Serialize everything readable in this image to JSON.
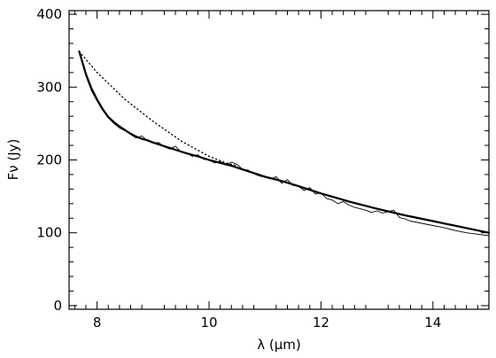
{
  "chart_data": {
    "type": "line",
    "title": "",
    "xlabel": "λ (μm)",
    "ylabel": "Fν (Jy)",
    "xlim": [
      7.5,
      15
    ],
    "ylim": [
      -5,
      405
    ],
    "xticks": [
      8,
      10,
      12,
      14
    ],
    "yticks": [
      0,
      100,
      200,
      300,
      400
    ],
    "xtick_labels": [
      "8",
      "10",
      "12",
      "14"
    ],
    "ytick_labels": [
      "0",
      "100",
      "200",
      "300",
      "400"
    ],
    "minor_xticks": [
      7.6,
      7.8,
      8.2,
      8.4,
      8.6,
      8.8,
      9.2,
      9.4,
      9.6,
      9.8,
      10.2,
      10.4,
      10.6,
      10.8,
      11.2,
      11.4,
      11.6,
      11.8,
      12.2,
      12.4,
      12.6,
      12.8,
      13.2,
      13.4,
      13.6,
      13.8,
      14.2,
      14.4,
      14.6,
      14.8
    ],
    "minor_yticks": [
      20,
      40,
      60,
      80,
      120,
      140,
      160,
      180,
      220,
      240,
      260,
      280,
      320,
      340,
      360,
      380
    ],
    "grid": false,
    "legend": "none",
    "series": [
      {
        "style": "solid-thick",
        "color": "#000000",
        "x": [
          7.68,
          7.8,
          7.9,
          8.0,
          8.1,
          8.2,
          8.3,
          8.4,
          8.5,
          8.6,
          8.7,
          8.8,
          8.9,
          9.0,
          9.2,
          9.4,
          9.6,
          9.8,
          10.0,
          10.2,
          10.4,
          10.6,
          10.8,
          11.0,
          11.3,
          11.6,
          12.0,
          12.5,
          13.0,
          13.5,
          14.0,
          14.5,
          15.0
        ],
        "y": [
          349,
          318,
          298,
          283,
          270,
          259,
          252,
          246,
          241,
          236,
          232,
          229,
          227,
          224,
          219,
          214,
          209,
          205,
          200,
          196,
          192,
          187,
          182,
          177,
          171,
          164,
          154,
          143,
          133,
          124,
          116,
          108,
          100
        ]
      },
      {
        "style": "solid-thin",
        "color": "#000000",
        "x": [
          7.68,
          7.8,
          7.9,
          8.0,
          8.1,
          8.2,
          8.3,
          8.4,
          8.5,
          8.6,
          8.7,
          8.8,
          8.9,
          9.0,
          9.1,
          9.2,
          9.3,
          9.4,
          9.5,
          9.6,
          9.7,
          9.8,
          9.9,
          10.0,
          10.1,
          10.2,
          10.3,
          10.4,
          10.5,
          10.6,
          10.7,
          10.8,
          10.9,
          11.0,
          11.1,
          11.2,
          11.3,
          11.4,
          11.5,
          11.6,
          11.7,
          11.8,
          11.9,
          12.0,
          12.1,
          12.2,
          12.3,
          12.4,
          12.5,
          12.6,
          12.7,
          12.8,
          12.9,
          13.0,
          13.1,
          13.2,
          13.3,
          13.4,
          13.5,
          13.6,
          13.8,
          14.0,
          14.2,
          14.4,
          14.6,
          14.8,
          15.0
        ],
        "y": [
          349,
          315,
          295,
          281,
          268,
          258,
          250,
          244,
          240,
          235,
          230,
          233,
          226,
          223,
          224,
          218,
          215,
          219,
          211,
          210,
          205,
          207,
          201,
          200,
          196,
          198,
          193,
          197,
          194,
          187,
          186,
          181,
          178,
          176,
          174,
          177,
          168,
          173,
          165,
          164,
          158,
          162,
          153,
          155,
          147,
          145,
          140,
          143,
          138,
          135,
          133,
          131,
          128,
          130,
          127,
          129,
          131,
          121,
          119,
          116,
          113,
          110,
          107,
          103,
          100,
          98,
          96
        ]
      },
      {
        "style": "dotted",
        "color": "#000000",
        "x": [
          7.68,
          8.0,
          8.5,
          9.0,
          9.5,
          10.0,
          10.3,
          10.5
        ],
        "y": [
          349,
          320,
          283,
          253,
          226,
          205,
          196,
          192
        ]
      }
    ],
    "annotations": []
  }
}
